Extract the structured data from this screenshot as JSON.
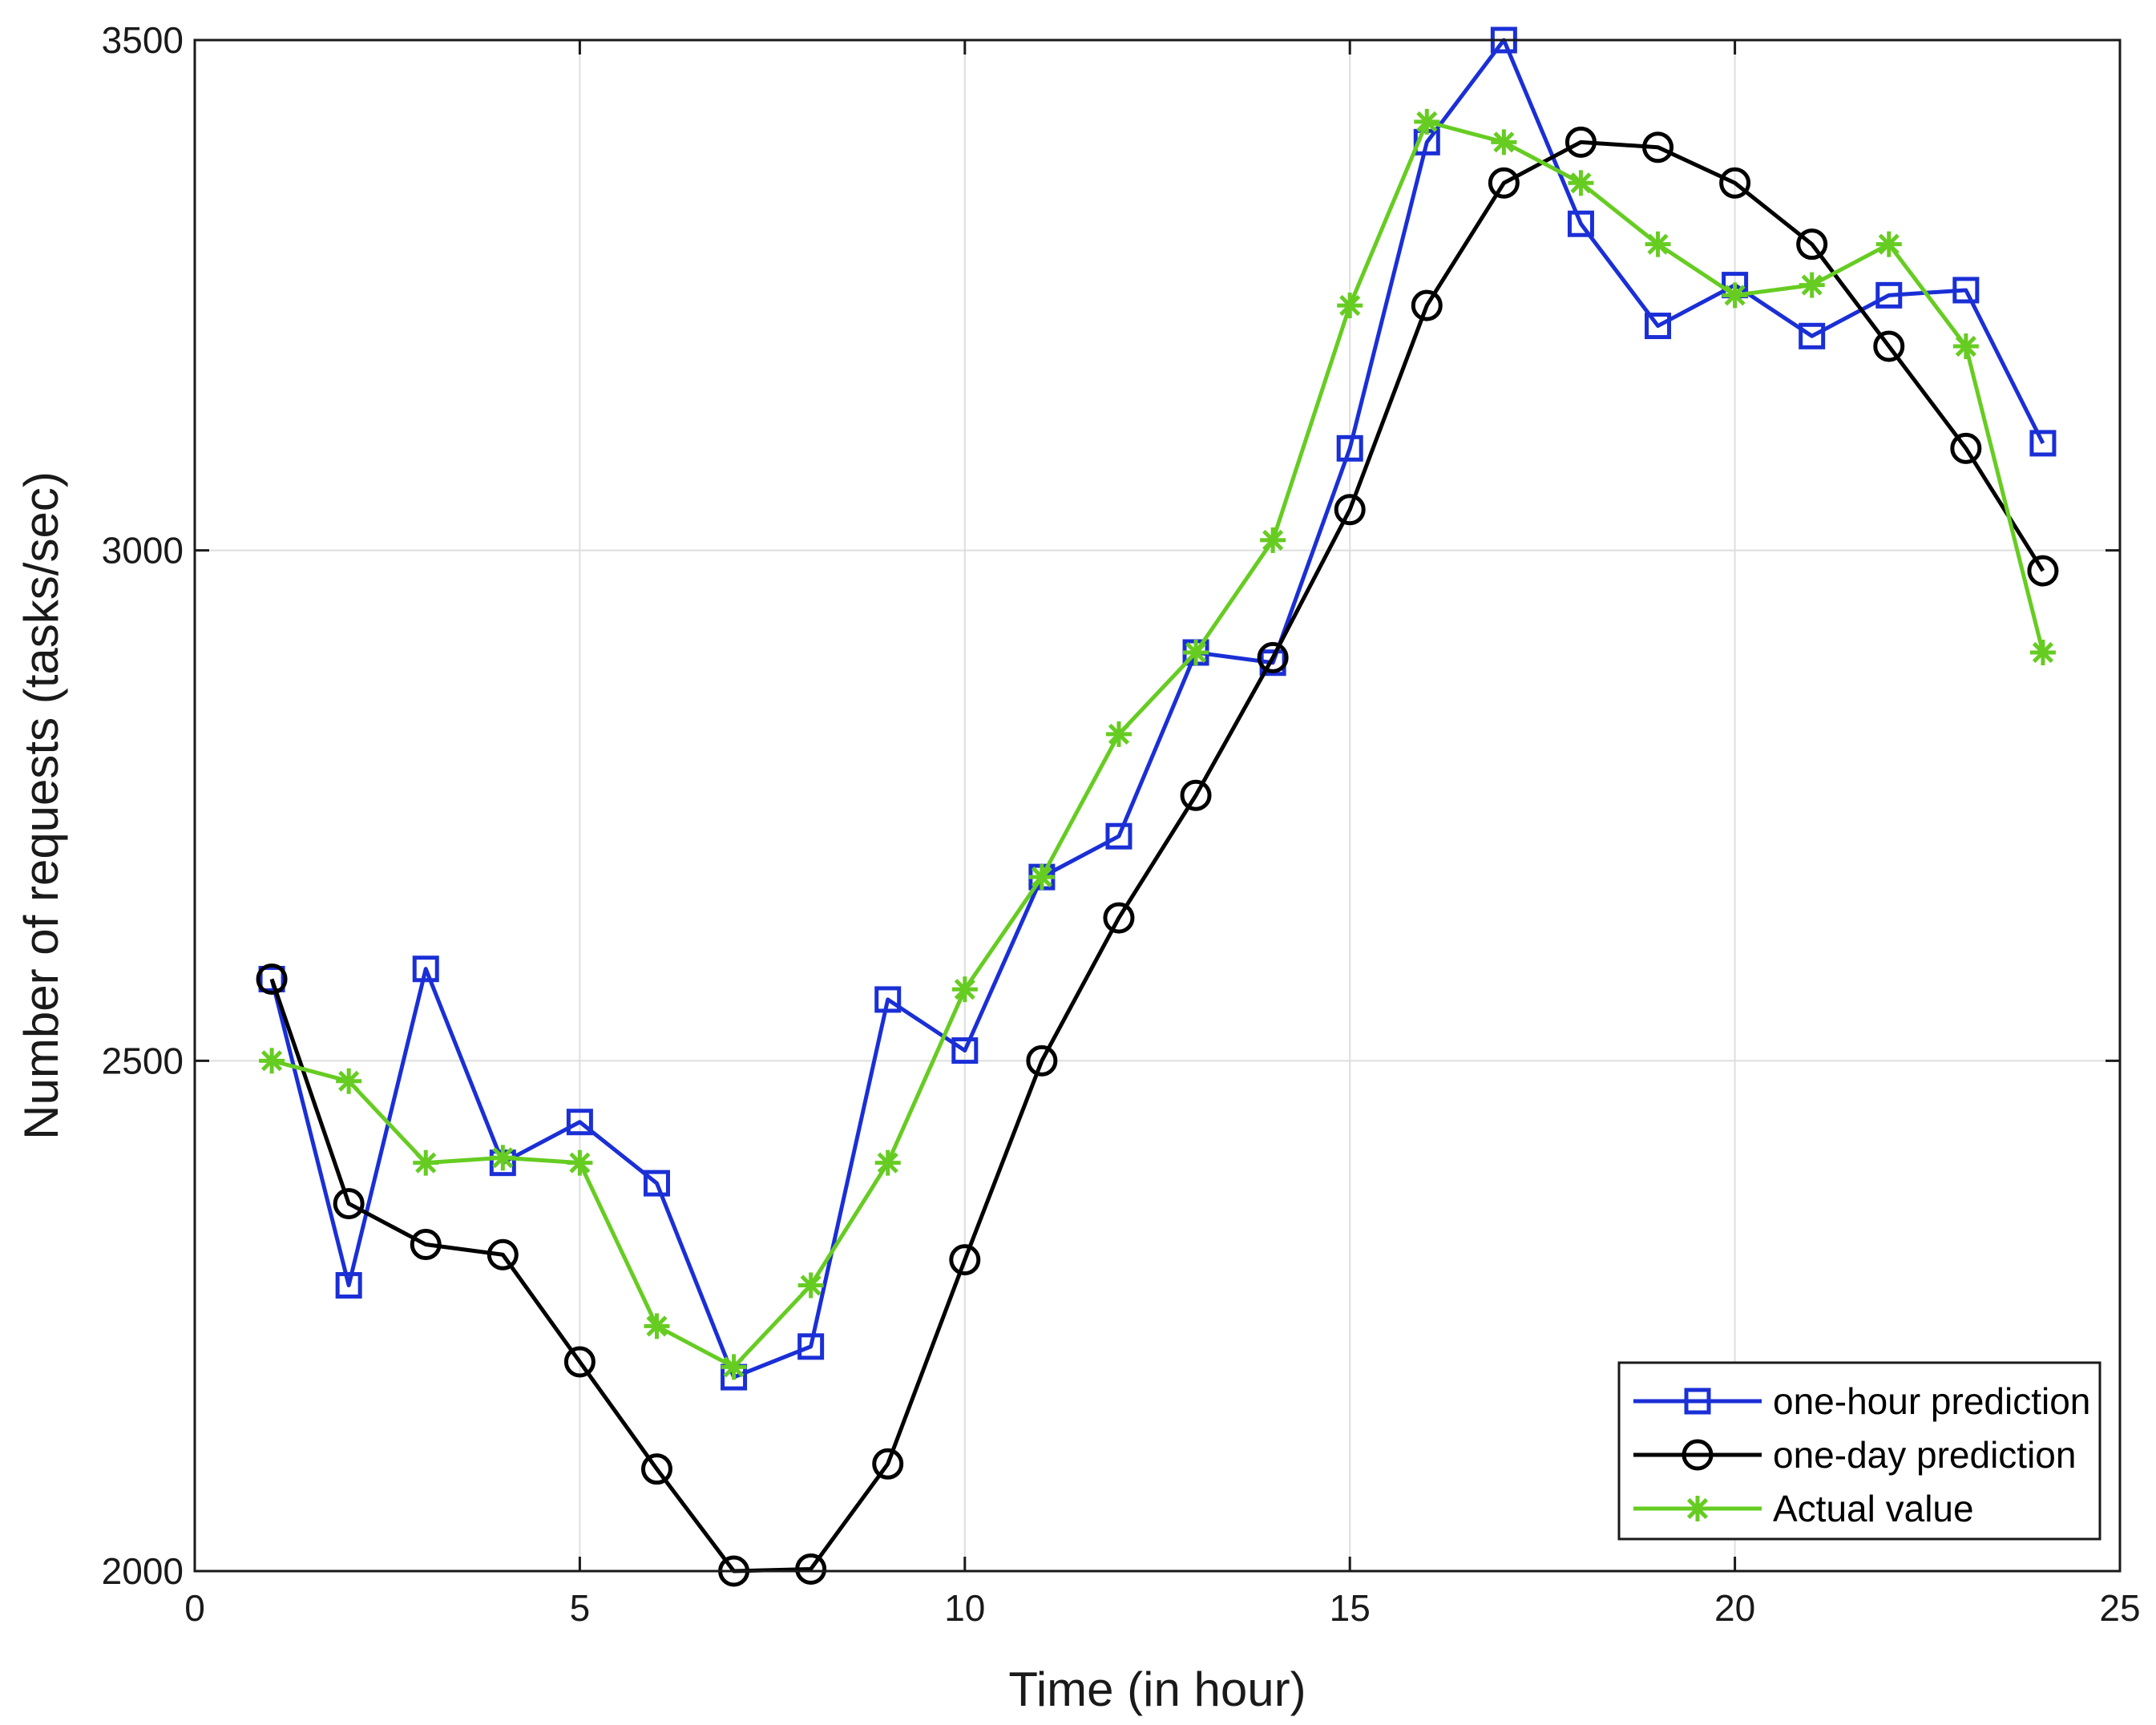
{
  "chart_data": {
    "type": "line",
    "title": "",
    "xlabel": "Time (in hour)",
    "ylabel": "Number of requests (tasks/sec)",
    "xlim": [
      0,
      25
    ],
    "ylim": [
      2000,
      3500
    ],
    "grid": true,
    "legend_position": "bottom-right",
    "x_ticks": [
      0,
      5,
      10,
      15,
      20,
      25
    ],
    "y_ticks": [
      2000,
      2500,
      3000,
      3500
    ],
    "x_tick_labels": [
      "0",
      "5",
      "10",
      "15",
      "20",
      "25"
    ],
    "y_tick_labels": [
      "2000",
      "2500",
      "3000",
      "3500"
    ],
    "x": [
      1,
      2,
      3,
      4,
      5,
      6,
      7,
      8,
      9,
      10,
      11,
      12,
      13,
      14,
      15,
      16,
      17,
      18,
      19,
      20,
      21,
      22,
      23,
      24
    ],
    "series": [
      {
        "name": "one-hour prediction",
        "color": "#1a2fd6",
        "marker": "square",
        "values": [
          2580,
          2280,
          2590,
          2400,
          2440,
          2380,
          2190,
          2220,
          2560,
          2510,
          2680,
          2720,
          2900,
          2890,
          3100,
          3400,
          3500,
          3320,
          3220,
          3260,
          3210,
          3250,
          3255,
          3105
        ]
      },
      {
        "name": "one-day prediction",
        "color": "#000000",
        "marker": "circle",
        "values": [
          2580,
          2360,
          2320,
          2310,
          2205,
          2100,
          2000,
          2002,
          2105,
          2305,
          2500,
          2640,
          2760,
          2895,
          3040,
          3240,
          3360,
          3400,
          3395,
          3360,
          3300,
          3200,
          3100,
          2980
        ]
      },
      {
        "name": "Actual value",
        "color": "#66cc22",
        "marker": "asterisk",
        "values": [
          2500,
          2480,
          2400,
          2405,
          2400,
          2240,
          2200,
          2280,
          2400,
          2570,
          2680,
          2820,
          2900,
          3010,
          3240,
          3420,
          3400,
          3360,
          3300,
          3250,
          3260,
          3300,
          3200,
          2900
        ]
      }
    ]
  }
}
